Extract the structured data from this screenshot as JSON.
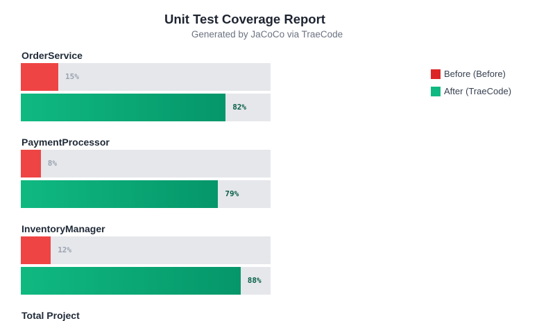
{
  "chart_data": {
    "type": "bar",
    "orientation": "horizontal",
    "title": "Unit Test Coverage Report",
    "subtitle": "Generated by JaCoCo via TraeCode",
    "categories": [
      "OrderService",
      "PaymentProcessor",
      "InventoryManager",
      "Total Project"
    ],
    "series": [
      {
        "name": "Before (Before)",
        "color": "#ef4444",
        "values": [
          15,
          8,
          12,
          null
        ],
        "labels": [
          "15%",
          "8%",
          "12%",
          ""
        ]
      },
      {
        "name": "After (TraeCode)",
        "color": "#10b981",
        "values": [
          82,
          79,
          88,
          null
        ],
        "labels": [
          "82%",
          "79%",
          "88%",
          ""
        ]
      }
    ],
    "xlim": [
      0,
      100
    ],
    "unit": "%",
    "legend_position": "top-right",
    "grid": false
  }
}
